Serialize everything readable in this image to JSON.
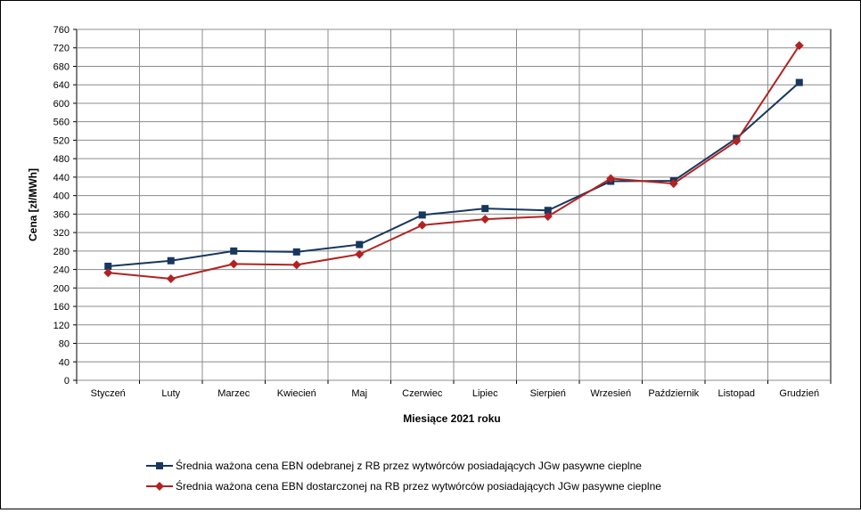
{
  "chart_data": {
    "type": "line",
    "title": "",
    "xlabel": "Miesiące 2021  roku",
    "ylabel": "Cena [zł/MWh]",
    "ylim": [
      0,
      760
    ],
    "yticks": [
      0,
      40,
      80,
      120,
      160,
      200,
      240,
      280,
      320,
      360,
      400,
      440,
      480,
      520,
      560,
      600,
      640,
      680,
      720,
      760
    ],
    "grid": true,
    "legend_position": "bottom",
    "categories": [
      "Styczeń",
      "Luty",
      "Marzec",
      "Kwiecień",
      "Maj",
      "Czerwiec",
      "Lipiec",
      "Sierpień",
      "Wrzesień",
      "Październik",
      "Listopad",
      "Grudzień"
    ],
    "series": [
      {
        "name": "Średnia ważona cena EBN odebranej z RB przez wytwórców posiadających JGw pasywne cieplne",
        "color": "#17375e",
        "marker": "square",
        "values": [
          247,
          259,
          280,
          278,
          294,
          358,
          372,
          368,
          431,
          432,
          524,
          645
        ]
      },
      {
        "name": "Średnia ważona cena EBN dostarczonej na RB przez wytwórców posiadających JGw pasywne cieplne",
        "color": "#b22222",
        "marker": "diamond",
        "values": [
          233,
          220,
          252,
          250,
          273,
          336,
          349,
          355,
          437,
          426,
          518,
          725
        ]
      }
    ]
  }
}
